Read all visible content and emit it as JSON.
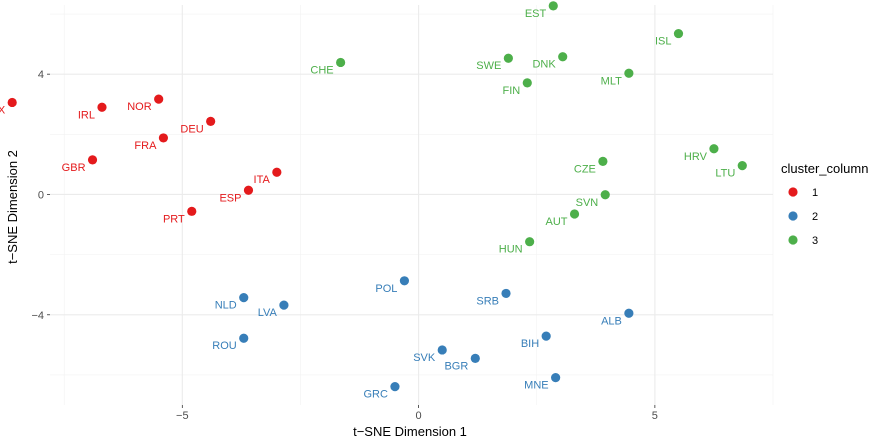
{
  "chart_data": {
    "type": "scatter",
    "title": "",
    "xlabel": "t−SNE Dimension 1",
    "ylabel": "t−SNE Dimension 2",
    "xlim": [
      -7.8,
      7.5
    ],
    "ylim": [
      -7.0,
      6.3
    ],
    "x_ticks": [
      {
        "value": -5,
        "label": "−5"
      },
      {
        "value": 0,
        "label": "0"
      },
      {
        "value": 5,
        "label": "5"
      }
    ],
    "y_ticks": [
      {
        "value": -4,
        "label": "−4"
      },
      {
        "value": 0,
        "label": "0"
      },
      {
        "value": 4,
        "label": "4"
      }
    ],
    "grid": true,
    "legend": {
      "title": "cluster_column",
      "placement": "right",
      "entries": [
        {
          "label": "1",
          "color": "#e41a1c"
        },
        {
          "label": "2",
          "color": "#377eb8"
        },
        {
          "label": "3",
          "color": "#4daf4a"
        }
      ]
    },
    "points": [
      {
        "label": "LUX",
        "x": -8.6,
        "y": 3.06,
        "cluster": "1"
      },
      {
        "label": "IRL",
        "x": -6.7,
        "y": 2.9,
        "cluster": "1"
      },
      {
        "label": "NOR",
        "x": -5.5,
        "y": 3.17,
        "cluster": "1"
      },
      {
        "label": "DEU",
        "x": -4.4,
        "y": 2.43,
        "cluster": "1"
      },
      {
        "label": "FRA",
        "x": -5.4,
        "y": 1.88,
        "cluster": "1"
      },
      {
        "label": "GBR",
        "x": -6.9,
        "y": 1.15,
        "cluster": "1"
      },
      {
        "label": "ITA",
        "x": -3.0,
        "y": 0.74,
        "cluster": "1"
      },
      {
        "label": "ESP",
        "x": -3.6,
        "y": 0.14,
        "cluster": "1"
      },
      {
        "label": "PRT",
        "x": -4.8,
        "y": -0.56,
        "cluster": "1"
      },
      {
        "label": "POL",
        "x": -0.3,
        "y": -2.87,
        "cluster": "2"
      },
      {
        "label": "NLD",
        "x": -3.7,
        "y": -3.43,
        "cluster": "2"
      },
      {
        "label": "LVA",
        "x": -2.85,
        "y": -3.68,
        "cluster": "2"
      },
      {
        "label": "ROU",
        "x": -3.7,
        "y": -4.78,
        "cluster": "2"
      },
      {
        "label": "SRB",
        "x": 1.85,
        "y": -3.29,
        "cluster": "2"
      },
      {
        "label": "ALB",
        "x": 4.45,
        "y": -3.95,
        "cluster": "2"
      },
      {
        "label": "BIH",
        "x": 2.7,
        "y": -4.71,
        "cluster": "2"
      },
      {
        "label": "SVK",
        "x": 0.5,
        "y": -5.17,
        "cluster": "2"
      },
      {
        "label": "BGR",
        "x": 1.2,
        "y": -5.45,
        "cluster": "2"
      },
      {
        "label": "MNE",
        "x": 2.9,
        "y": -6.09,
        "cluster": "2"
      },
      {
        "label": "GRC",
        "x": -0.5,
        "y": -6.39,
        "cluster": "2"
      },
      {
        "label": "EST",
        "x": 2.85,
        "y": 6.27,
        "cluster": "3"
      },
      {
        "label": "ISL",
        "x": 5.5,
        "y": 5.35,
        "cluster": "3"
      },
      {
        "label": "CHE",
        "x": -1.65,
        "y": 4.39,
        "cluster": "3"
      },
      {
        "label": "SWE",
        "x": 1.9,
        "y": 4.53,
        "cluster": "3"
      },
      {
        "label": "DNK",
        "x": 3.05,
        "y": 4.58,
        "cluster": "3"
      },
      {
        "label": "MLT",
        "x": 4.45,
        "y": 4.03,
        "cluster": "3"
      },
      {
        "label": "FIN",
        "x": 2.3,
        "y": 3.71,
        "cluster": "3"
      },
      {
        "label": "HRV",
        "x": 6.25,
        "y": 1.52,
        "cluster": "3"
      },
      {
        "label": "LTU",
        "x": 6.85,
        "y": 0.96,
        "cluster": "3"
      },
      {
        "label": "CZE",
        "x": 3.9,
        "y": 1.1,
        "cluster": "3"
      },
      {
        "label": "SVN",
        "x": 3.95,
        "y": -0.01,
        "cluster": "3"
      },
      {
        "label": "AUT",
        "x": 3.3,
        "y": -0.65,
        "cluster": "3"
      },
      {
        "label": "HUN",
        "x": 2.35,
        "y": -1.57,
        "cluster": "3"
      }
    ]
  }
}
